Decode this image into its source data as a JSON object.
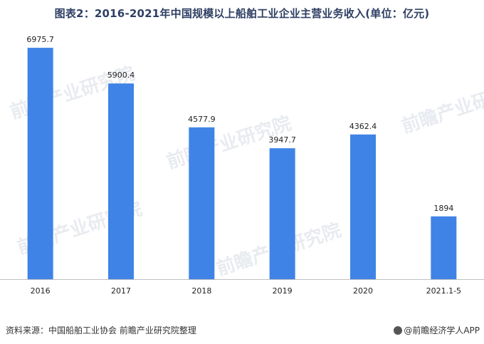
{
  "chart_data": {
    "type": "bar",
    "title": "图表2：2016-2021年中国规模以上船舶工业企业主营业务收入(单位：亿元)",
    "categories": [
      "2016",
      "2017",
      "2018",
      "2019",
      "2020",
      "2021.1-5"
    ],
    "values": [
      6975.7,
      5900.4,
      4577.9,
      3947.7,
      4362.4,
      1894
    ],
    "value_labels": [
      "6975.7",
      "5900.4",
      "4577.9",
      "3947.7",
      "4362.4",
      "1894"
    ],
    "ylim": [
      0,
      7300
    ],
    "xlabel": "",
    "ylabel": "",
    "bar_color": "#3f83e6",
    "grid": false
  },
  "footer": {
    "source": "资料来源：中国船舶工业协会 前瞻产业研究院整理",
    "brand": "@前瞻经济学人APP"
  },
  "watermark": "前瞻产业研究院"
}
